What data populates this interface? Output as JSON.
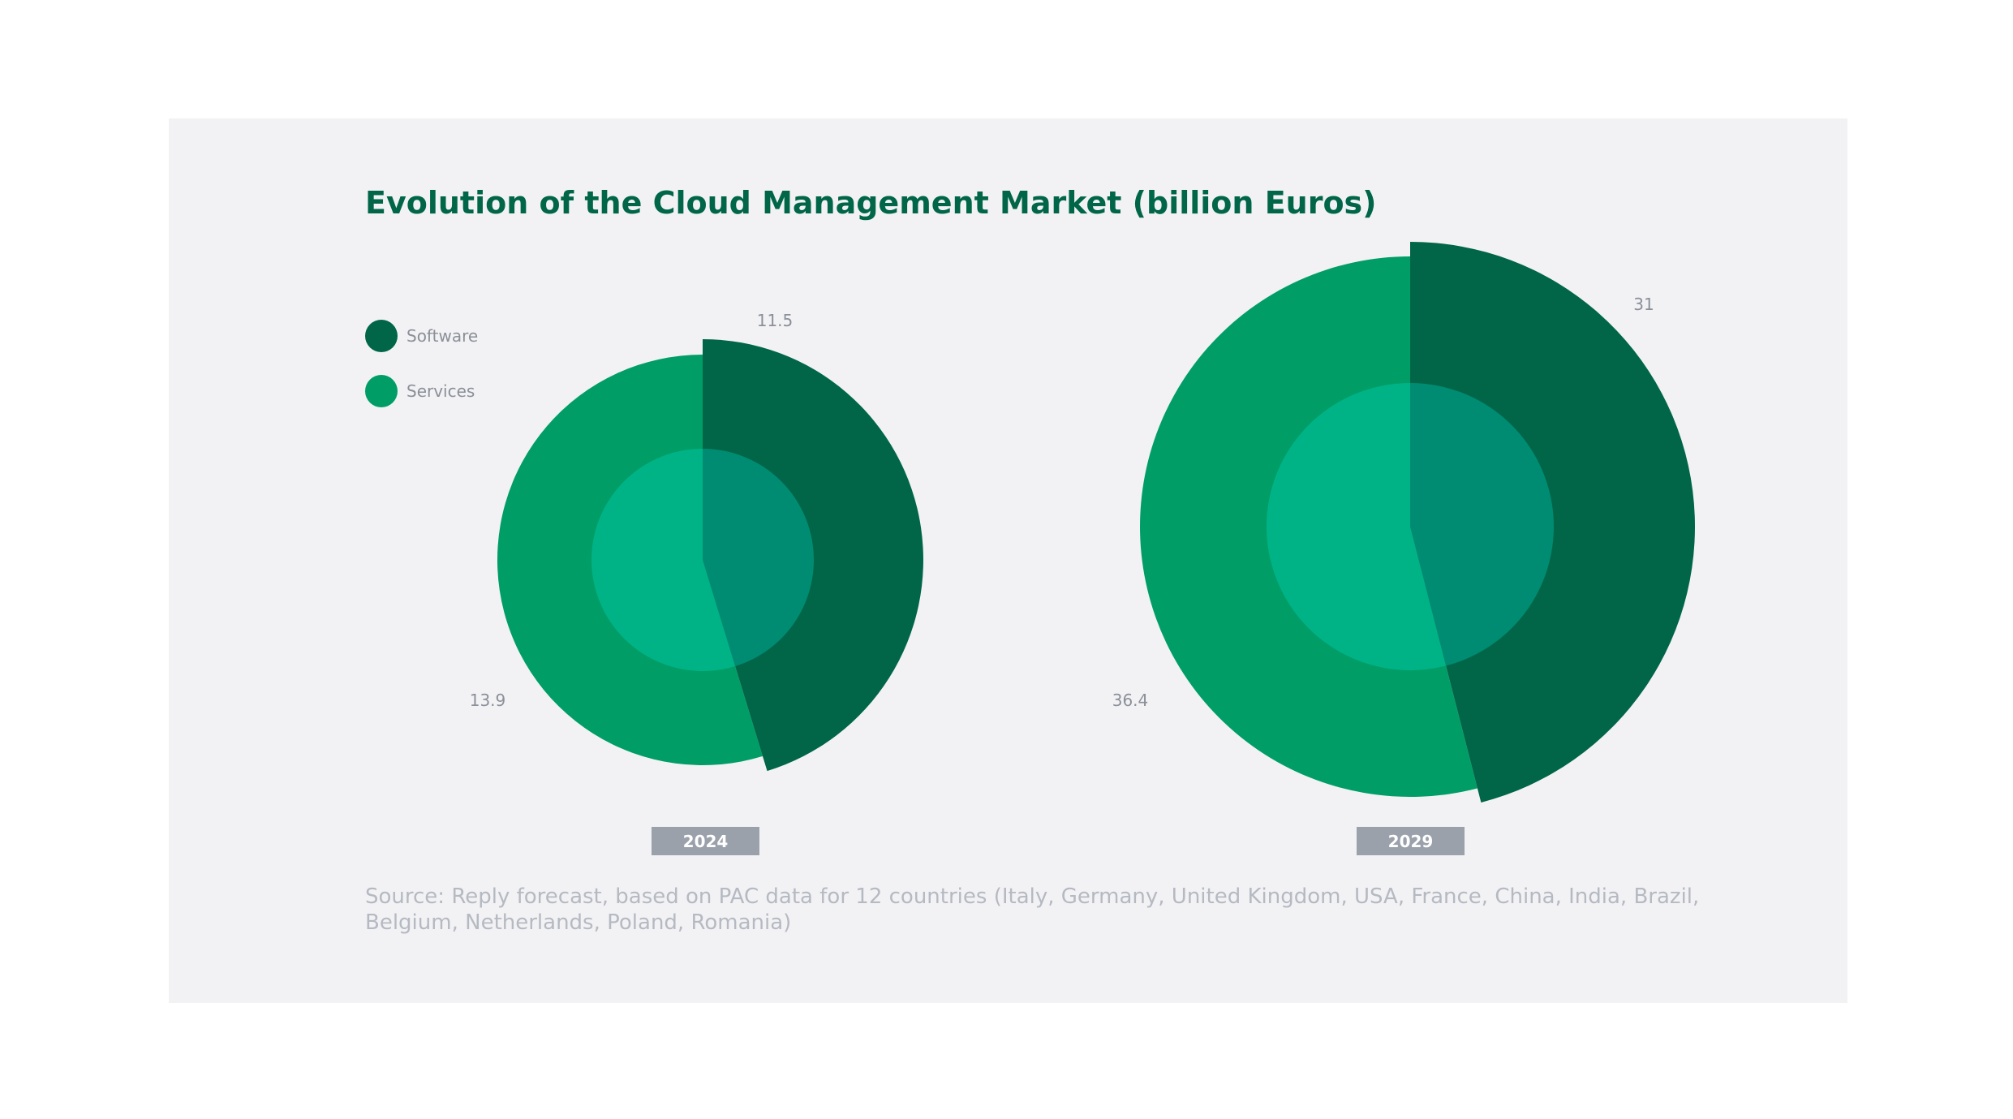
{
  "title": "Evolution of the Cloud Management Market (billion Euros)",
  "legend": [
    {
      "label": "Software",
      "color": "#006647"
    },
    {
      "label": "Services",
      "color": "#009e66"
    }
  ],
  "source": "Source: Reply forecast, based on PAC data for 12 countries (Italy, Germany, United Kingdom, USA, France, China, India, Brazil, Belgium, Netherlands, Poland, Romania)",
  "colors": {
    "software": "#006647",
    "services": "#009e66",
    "inner_software": "#008c72",
    "inner_services": "#00b386",
    "year_badge": "#9aa1ab"
  },
  "chart_data": [
    {
      "type": "pie",
      "year": "2024",
      "series": [
        {
          "name": "Software",
          "value": 11.5,
          "label": "11.5"
        },
        {
          "name": "Services",
          "value": 13.9,
          "label": "13.9"
        }
      ]
    },
    {
      "type": "pie",
      "year": "2029",
      "series": [
        {
          "name": "Software",
          "value": 31,
          "label": "31"
        },
        {
          "name": "Services",
          "value": 36.4,
          "label": "36.4"
        }
      ]
    }
  ]
}
